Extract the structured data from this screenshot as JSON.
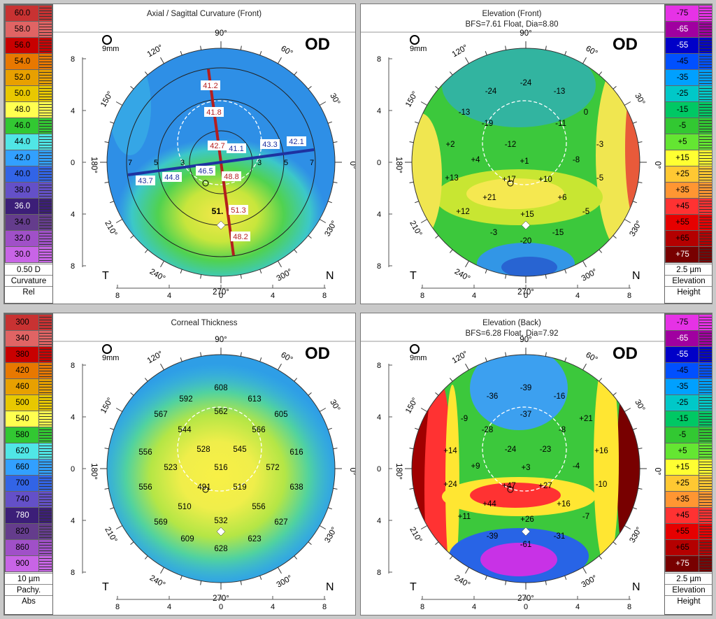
{
  "panels": [
    {
      "id": "axial",
      "title": "Axial / Sagittal Curvature (Front)",
      "subtitle": "",
      "eye": "OD",
      "zoom": "9mm",
      "legend_side": "left",
      "legend_values": [
        "60.0",
        "58.0",
        "56.0",
        "54.0",
        "52.0",
        "50.0",
        "48.0",
        "46.0",
        "44.0",
        "42.0",
        "40.0",
        "38.0",
        "36.0",
        "34.0",
        "32.0",
        "30.0"
      ],
      "legend_colors": [
        "#c83232",
        "#e06464",
        "#c80000",
        "#e87800",
        "#e8a000",
        "#e8c800",
        "#ffff50",
        "#32c832",
        "#50e6e6",
        "#32a0ff",
        "#3264e6",
        "#6450c8",
        "#3c1e78",
        "#643c8c",
        "#a050c8",
        "#c864e6"
      ],
      "legend_footer": [
        "0.50 D",
        "Curvature",
        "Rel"
      ],
      "axis_labels": {
        "top": "90°",
        "bottom": "270°",
        "left": "180°",
        "right": "0°",
        "deg120": "120°",
        "deg60": "60°",
        "deg150": "150°",
        "deg30": "30°",
        "deg210": "210°",
        "deg330": "330°",
        "deg240": "240°",
        "deg300": "300°"
      },
      "corner_left": "T",
      "corner_right": "N",
      "x_ticks": [
        "8",
        "4",
        "0",
        "4",
        "8"
      ],
      "y_ticks": [
        "8",
        "4",
        "0",
        "4",
        "8"
      ]
    },
    {
      "id": "elev_front",
      "title": "Elevation (Front)",
      "subtitle": "BFS=7.61 Float, Dia=8.80",
      "eye": "OD",
      "zoom": "9mm",
      "legend_side": "right",
      "legend_values": [
        "-75",
        "-65",
        "-55",
        "-45",
        "-35",
        "-25",
        "-15",
        "-5",
        "+5",
        "+15",
        "+25",
        "+35",
        "+45",
        "+55",
        "+65",
        "+75"
      ],
      "legend_colors": [
        "#e632e6",
        "#a000a0",
        "#0000c8",
        "#0050ff",
        "#00a0ff",
        "#00c8c8",
        "#00c864",
        "#32c832",
        "#64e632",
        "#ffff32",
        "#ffc832",
        "#ff9632",
        "#ff3232",
        "#e60000",
        "#b40000",
        "#780000"
      ],
      "legend_footer": [
        "2.5 µm",
        "Elevation",
        "Height"
      ],
      "axis_labels": {
        "top": "90°",
        "bottom": "270°",
        "left": "180°",
        "right": "0°",
        "deg120": "120°",
        "deg60": "60°",
        "deg150": "150°",
        "deg30": "30°",
        "deg210": "210°",
        "deg330": "330°",
        "deg240": "240°",
        "deg300": "300°"
      },
      "corner_left": "T",
      "corner_right": "N",
      "x_ticks": [
        "8",
        "4",
        "0",
        "4",
        "8"
      ],
      "y_ticks": [
        "8",
        "4",
        "0",
        "4",
        "8"
      ]
    },
    {
      "id": "thickness",
      "title": "Corneal Thickness",
      "subtitle": "",
      "eye": "OD",
      "zoom": "9mm",
      "legend_side": "left",
      "legend_values": [
        "300",
        "340",
        "380",
        "420",
        "460",
        "500",
        "540",
        "580",
        "620",
        "660",
        "700",
        "740",
        "780",
        "820",
        "860",
        "900"
      ],
      "legend_colors": [
        "#c83232",
        "#e06464",
        "#c80000",
        "#e87800",
        "#e8a000",
        "#e8c800",
        "#ffff50",
        "#32c832",
        "#50e6e6",
        "#32a0ff",
        "#3264e6",
        "#6450c8",
        "#3c1e78",
        "#643c8c",
        "#a050c8",
        "#c864e6"
      ],
      "legend_footer": [
        "10 µm",
        "Pachy.",
        "Abs"
      ],
      "axis_labels": {
        "top": "90°",
        "bottom": "270°",
        "left": "180°",
        "right": "0°",
        "deg120": "120°",
        "deg60": "60°",
        "deg150": "150°",
        "deg30": "30°",
        "deg210": "210°",
        "deg330": "330°",
        "deg240": "240°",
        "deg300": "300°"
      },
      "corner_left": "T",
      "corner_right": "N",
      "x_ticks": [
        "8",
        "4",
        "0",
        "4",
        "8"
      ],
      "y_ticks": [
        "8",
        "4",
        "0",
        "4",
        "8"
      ]
    },
    {
      "id": "elev_back",
      "title": "Elevation (Back)",
      "subtitle": "BFS=6.28 Float, Dia=7.92",
      "eye": "OD",
      "zoom": "9mm",
      "legend_side": "right",
      "legend_values": [
        "-75",
        "-65",
        "-55",
        "-45",
        "-35",
        "-25",
        "-15",
        "-5",
        "+5",
        "+15",
        "+25",
        "+35",
        "+45",
        "+55",
        "+65",
        "+75"
      ],
      "legend_colors": [
        "#e632e6",
        "#a000a0",
        "#0000c8",
        "#0050ff",
        "#00a0ff",
        "#00c8c8",
        "#00c864",
        "#32c832",
        "#64e632",
        "#ffff32",
        "#ffc832",
        "#ff9632",
        "#ff3232",
        "#e60000",
        "#b40000",
        "#780000"
      ],
      "legend_footer": [
        "2.5 µm",
        "Elevation",
        "Height"
      ],
      "axis_labels": {
        "top": "90°",
        "bottom": "270°",
        "left": "180°",
        "right": "0°",
        "deg120": "120°",
        "deg60": "60°",
        "deg150": "150°",
        "deg30": "30°",
        "deg210": "210°",
        "deg330": "330°",
        "deg240": "240°",
        "deg300": "300°"
      },
      "corner_left": "T",
      "corner_right": "N",
      "x_ticks": [
        "8",
        "4",
        "0",
        "4",
        "8"
      ],
      "y_ticks": [
        "8",
        "4",
        "0",
        "4",
        "8"
      ]
    }
  ],
  "axial_values": {
    "vertical": [
      "41.2",
      "41.8",
      "42.7",
      "48.8",
      "51.3",
      "48.2"
    ],
    "horizontal": [
      "43.7",
      "44.8",
      "46.5",
      "41.1",
      "43.3",
      "42.1"
    ],
    "ring_labels": [
      "7",
      "5",
      "3",
      "3",
      "5",
      "7"
    ],
    "apex": "51."
  },
  "elev_front_values": [
    "-24",
    "-24",
    "-13",
    "-13",
    "-19",
    "-11",
    "0",
    "+2",
    "+4",
    "-12",
    "+1",
    "-8",
    "-3",
    "+13",
    "+17",
    "+10",
    "-5",
    "+21",
    "+6",
    "+12",
    "+15",
    "-5",
    "-3",
    "-15",
    "-20"
  ],
  "thickness_values": [
    "608",
    "592",
    "562",
    "613",
    "567",
    "544",
    "566",
    "605",
    "556",
    "528",
    "545",
    "616",
    "523",
    "516",
    "572",
    "556",
    "491",
    "519",
    "638",
    "510",
    "556",
    "569",
    "532",
    "627",
    "609",
    "623",
    "628"
  ],
  "elev_back_values": [
    "-39",
    "-36",
    "-16",
    "-9",
    "-37",
    "+21",
    "-28",
    "-8",
    "+14",
    "-24",
    "-23",
    "+16",
    "+9",
    "+3",
    "-4",
    "+24",
    "+47",
    "+27",
    "-10",
    "+44",
    "+16",
    "+11",
    "+26",
    "-7",
    "-39",
    "-31",
    "-61"
  ]
}
